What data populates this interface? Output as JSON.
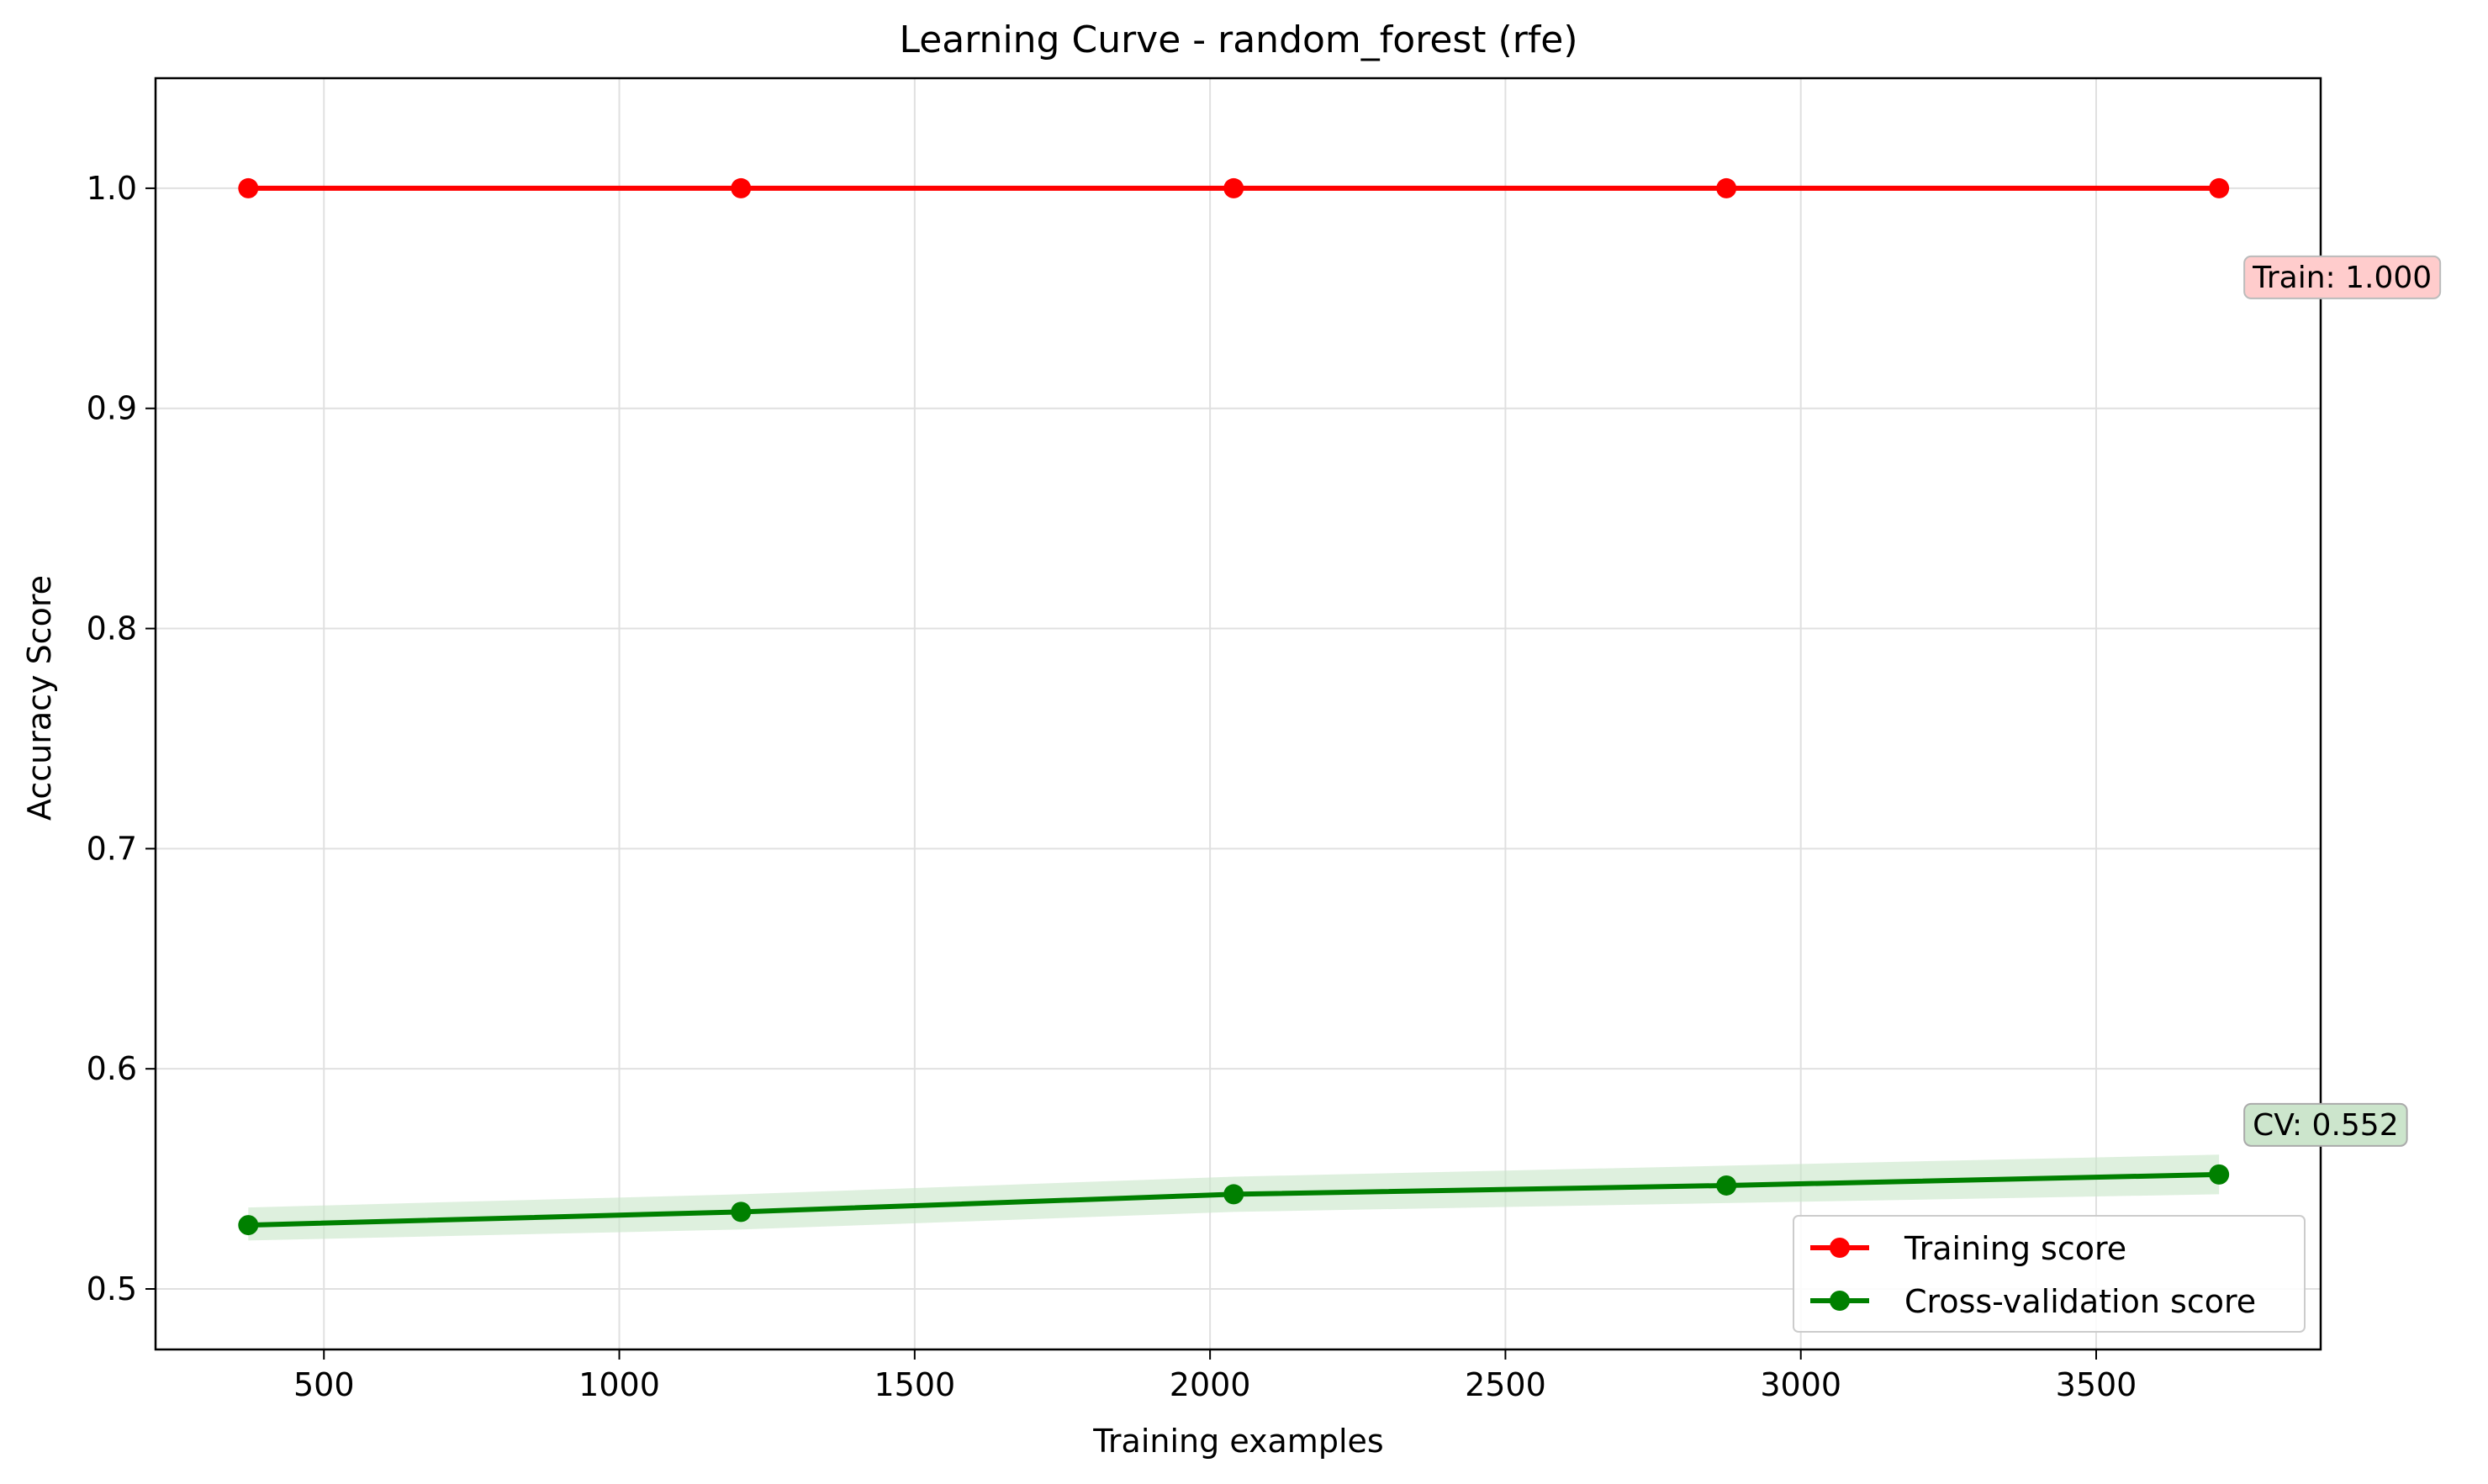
{
  "chart_data": {
    "type": "line",
    "title": "Learning Curve - random_forest (rfe)",
    "xlabel": "Training examples",
    "ylabel": "Accuracy Score",
    "xlim": [
      215,
      3880
    ],
    "ylim": [
      0.4725,
      1.05
    ],
    "x_ticks": [
      500,
      1000,
      1500,
      2000,
      2500,
      3000,
      3500
    ],
    "x_tick_labels": [
      "500",
      "1000",
      "1500",
      "2000",
      "2500",
      "3000",
      "3500"
    ],
    "y_ticks": [
      0.5,
      0.6,
      0.7,
      0.8,
      0.9,
      1.0
    ],
    "y_tick_labels": [
      "0.5",
      "0.6",
      "0.7",
      "0.8",
      "0.9",
      "1.0"
    ],
    "grid": true,
    "legend_position": "lower-right",
    "x": [
      372,
      1206,
      2040,
      2874,
      3708
    ],
    "series": [
      {
        "name": "Training score",
        "color": "#ff0000",
        "values": [
          1.0,
          1.0,
          1.0,
          1.0,
          1.0
        ],
        "band_low": [
          1.0,
          1.0,
          1.0,
          1.0,
          1.0
        ],
        "band_high": [
          1.0,
          1.0,
          1.0,
          1.0,
          1.0
        ]
      },
      {
        "name": "Cross-validation score",
        "color": "#008000",
        "band_color": "#c8e6c8",
        "values": [
          0.529,
          0.535,
          0.543,
          0.547,
          0.552
        ],
        "band_low": [
          0.522,
          0.527,
          0.535,
          0.539,
          0.543
        ],
        "band_high": [
          0.537,
          0.543,
          0.551,
          0.556,
          0.561
        ]
      }
    ],
    "annotations": [
      {
        "text": "Train: 1.000",
        "anchor_series": "Training score",
        "face_color": "#ffcccc",
        "edge_color": "#bbbbbb"
      },
      {
        "text": "CV: 0.552",
        "anchor_series": "Cross-validation score",
        "face_color": "#cce5cc",
        "edge_color": "#aaaaaa"
      }
    ]
  }
}
